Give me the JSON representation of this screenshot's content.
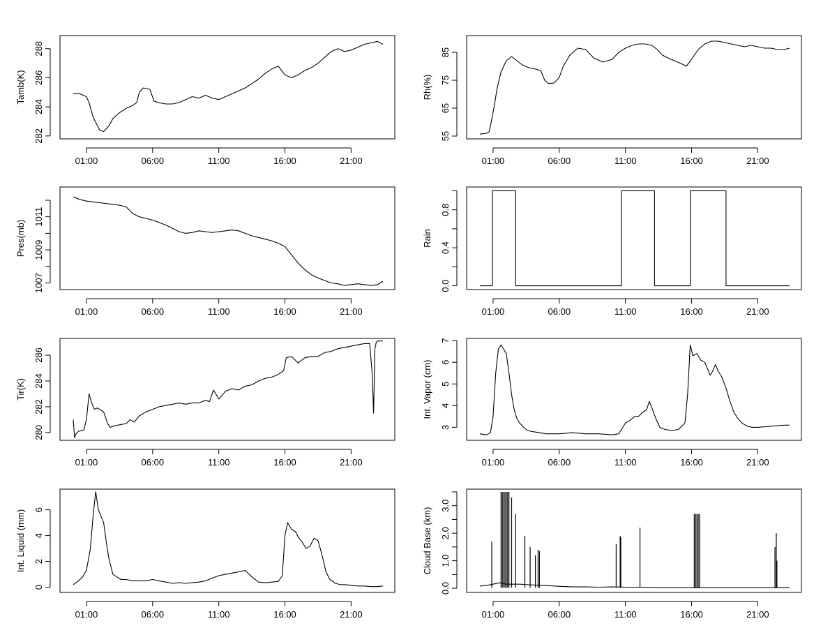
{
  "x_ticks": [
    "01:00",
    "06:00",
    "11:00",
    "16:00",
    "21:00"
  ],
  "x_tick_values": [
    1,
    6,
    11,
    16,
    21
  ],
  "line_color": "#000000",
  "chart_data": [
    {
      "type": "line",
      "ylabel": "Tamb(K)",
      "ylim": [
        281.8,
        288.9
      ],
      "yticks": [
        282,
        284,
        286,
        288
      ],
      "yticklabels": [
        "282",
        "284",
        "286",
        "288"
      ],
      "x": [
        0,
        0.5,
        1,
        1.2,
        1.5,
        2,
        2.3,
        2.7,
        3,
        3.5,
        4,
        4.5,
        4.8,
        5,
        5.3,
        5.8,
        6.1,
        6.4,
        7,
        7.5,
        8,
        8.5,
        9,
        9.5,
        10,
        10.5,
        11,
        11.5,
        12,
        12.5,
        13,
        13.5,
        14,
        14.5,
        15,
        15.5,
        16,
        16.5,
        17,
        17.5,
        18,
        18.5,
        19,
        19.5,
        20,
        20.5,
        21,
        21.5,
        22,
        22.5,
        23,
        23.4
      ],
      "y": [
        284.9,
        284.9,
        284.7,
        284.3,
        283.3,
        282.4,
        282.3,
        282.7,
        283.2,
        283.6,
        283.9,
        284.1,
        284.3,
        285.0,
        285.3,
        285.2,
        284.4,
        284.3,
        284.2,
        284.2,
        284.3,
        284.5,
        284.7,
        284.6,
        284.8,
        284.6,
        284.5,
        284.7,
        284.9,
        285.1,
        285.3,
        285.6,
        285.9,
        286.3,
        286.6,
        286.8,
        286.2,
        286.0,
        286.2,
        286.5,
        286.7,
        287.0,
        287.4,
        287.8,
        288.0,
        287.8,
        287.9,
        288.1,
        288.3,
        288.4,
        288.5,
        288.3
      ]
    },
    {
      "type": "line",
      "ylabel": "Rh(%)",
      "ylim": [
        54,
        91
      ],
      "yticks": [
        55,
        65,
        75,
        85
      ],
      "yticklabels": [
        "55",
        "65",
        "75",
        "85"
      ],
      "x": [
        0,
        0.5,
        0.7,
        0.9,
        1.1,
        1.3,
        1.6,
        2,
        2.4,
        2.8,
        3.2,
        3.7,
        4.2,
        4.6,
        4.9,
        5.2,
        5.6,
        6,
        6.3,
        6.8,
        7.4,
        8,
        8.6,
        9.3,
        10,
        10.5,
        11,
        11.5,
        12,
        12.5,
        13,
        13.4,
        13.8,
        14.2,
        14.7,
        15.2,
        15.6,
        16,
        16.5,
        17,
        17.5,
        18,
        18.5,
        19,
        19.5,
        20,
        20.5,
        21,
        21.5,
        22,
        22.5,
        23,
        23.4
      ],
      "y": [
        55.7,
        56,
        56.5,
        61,
        66,
        72,
        78,
        82,
        83.5,
        82,
        80.5,
        79.5,
        79,
        78.5,
        75,
        73.8,
        74,
        76,
        80,
        84,
        86.5,
        86,
        83,
        81.5,
        82.5,
        85,
        86.5,
        87.5,
        88,
        88,
        87.5,
        86,
        84,
        83,
        82,
        81,
        80,
        82.5,
        86,
        88,
        89,
        89,
        88.5,
        88,
        87.5,
        87,
        87.5,
        87,
        86.5,
        86.5,
        86,
        86,
        86.5
      ]
    },
    {
      "type": "line",
      "ylabel": "Pres(mb)",
      "ylim": [
        1006.6,
        1012.8
      ],
      "yticks": [
        1007,
        1009,
        1011
      ],
      "yticklabels": [
        "1007",
        "1009",
        "1011"
      ],
      "minor_yticks": [
        1008,
        1010,
        1012
      ],
      "x": [
        0,
        0.5,
        1,
        1.5,
        2,
        2.5,
        3,
        3.5,
        4,
        4.5,
        5,
        5.5,
        6,
        6.5,
        7,
        7.5,
        8,
        8.5,
        9,
        9.5,
        10,
        10.5,
        11,
        11.5,
        12,
        12.5,
        13,
        13.5,
        14,
        14.5,
        15,
        15.5,
        16,
        16.5,
        17,
        17.5,
        18,
        18.5,
        19,
        19.5,
        20,
        20.5,
        21,
        21.5,
        22,
        22.5,
        23,
        23.4
      ],
      "y": [
        1012.2,
        1012.05,
        1011.95,
        1011.9,
        1011.85,
        1011.8,
        1011.75,
        1011.7,
        1011.6,
        1011.2,
        1011.0,
        1010.9,
        1010.8,
        1010.65,
        1010.5,
        1010.3,
        1010.1,
        1010.0,
        1010.05,
        1010.15,
        1010.1,
        1010.05,
        1010.1,
        1010.15,
        1010.2,
        1010.15,
        1010.0,
        1009.85,
        1009.75,
        1009.65,
        1009.55,
        1009.4,
        1009.2,
        1008.7,
        1008.2,
        1007.8,
        1007.5,
        1007.3,
        1007.15,
        1007.0,
        1006.95,
        1006.85,
        1006.9,
        1006.95,
        1006.9,
        1006.85,
        1006.9,
        1007.1
      ]
    },
    {
      "type": "line",
      "step": true,
      "ylabel": "Rain",
      "ylim": [
        -0.04,
        1.04
      ],
      "yticks": [
        0,
        0.4,
        0.8
      ],
      "yticklabels": [
        "0.0",
        "0.4",
        "0.8"
      ],
      "minor_yticks": [
        0.2,
        0.6,
        1.0
      ],
      "x": [
        0,
        0.95,
        0.95,
        2.7,
        2.7,
        10.7,
        10.7,
        13.2,
        13.2,
        15.9,
        15.9,
        18.6,
        18.6,
        23.4
      ],
      "y": [
        0,
        0,
        1,
        1,
        0,
        0,
        1,
        1,
        0,
        0,
        1,
        1,
        0,
        0
      ]
    },
    {
      "type": "line",
      "ylabel": "Tir(K)",
      "ylim": [
        279.4,
        287.3
      ],
      "yticks": [
        280,
        282,
        284,
        286
      ],
      "yticklabels": [
        "280",
        "282",
        "284",
        "286"
      ],
      "x": [
        0,
        0.1,
        0.2,
        0.4,
        0.8,
        1.0,
        1.1,
        1.2,
        1.4,
        1.6,
        1.8,
        2.0,
        2.3,
        2.6,
        2.8,
        3.0,
        3.5,
        4.0,
        4.3,
        4.6,
        5.0,
        5.5,
        6.0,
        6.5,
        7.0,
        7.5,
        8.0,
        8.5,
        9.0,
        9.5,
        10.0,
        10.3,
        10.6,
        11.0,
        11.5,
        12.0,
        12.5,
        13.0,
        13.5,
        14.0,
        14.5,
        15.0,
        15.5,
        15.9,
        16.1,
        16.5,
        17.0,
        17.5,
        18.0,
        18.5,
        19.0,
        19.5,
        20.0,
        20.5,
        21.0,
        21.5,
        22.0,
        22.4,
        22.6,
        22.7,
        22.8,
        22.9,
        23.0,
        23.2,
        23.4
      ],
      "y": [
        281.0,
        279.6,
        279.9,
        280.1,
        280.2,
        281.0,
        282.0,
        283.0,
        282.3,
        281.8,
        281.9,
        281.8,
        281.6,
        280.7,
        280.4,
        280.5,
        280.6,
        280.7,
        281.0,
        280.8,
        281.3,
        281.6,
        281.8,
        282.0,
        282.1,
        282.2,
        282.3,
        282.2,
        282.3,
        282.3,
        282.5,
        282.4,
        283.3,
        282.6,
        283.2,
        283.4,
        283.3,
        283.6,
        283.7,
        284.0,
        284.2,
        284.3,
        284.5,
        284.8,
        285.8,
        285.9,
        285.4,
        285.8,
        285.9,
        285.9,
        286.2,
        286.3,
        286.5,
        286.6,
        286.7,
        286.8,
        286.9,
        286.9,
        284.5,
        281.5,
        286.5,
        287.0,
        287.1,
        287.1,
        287.1
      ]
    },
    {
      "type": "line",
      "ylabel": "Int. Vapor (cm)",
      "ylim": [
        2.4,
        7.1
      ],
      "yticks": [
        3,
        4,
        5,
        6,
        7
      ],
      "yticklabels": [
        "3",
        "4",
        "5",
        "6",
        "7"
      ],
      "x": [
        0,
        0.5,
        0.8,
        1.0,
        1.2,
        1.4,
        1.6,
        1.8,
        2.0,
        2.2,
        2.4,
        2.6,
        2.8,
        3.0,
        3.3,
        3.6,
        4.0,
        4.5,
        5.0,
        6.0,
        7.0,
        8.0,
        9.0,
        10.0,
        10.5,
        10.8,
        11.0,
        11.3,
        11.7,
        12.0,
        12.3,
        12.6,
        12.8,
        13.0,
        13.3,
        13.6,
        14.0,
        14.5,
        15.0,
        15.5,
        15.7,
        15.9,
        16.1,
        16.4,
        16.7,
        17.0,
        17.2,
        17.4,
        17.6,
        17.8,
        18.0,
        18.3,
        18.6,
        18.9,
        19.2,
        19.5,
        19.8,
        20.2,
        20.6,
        21.0,
        22.0,
        23.0,
        23.4
      ],
      "y": [
        2.7,
        2.65,
        2.75,
        3.5,
        5.5,
        6.6,
        6.8,
        6.6,
        6.4,
        5.5,
        4.5,
        3.8,
        3.4,
        3.2,
        3.0,
        2.85,
        2.8,
        2.75,
        2.7,
        2.7,
        2.75,
        2.7,
        2.7,
        2.65,
        2.7,
        3.0,
        3.2,
        3.3,
        3.5,
        3.5,
        3.7,
        3.8,
        4.2,
        3.9,
        3.4,
        3.0,
        2.9,
        2.85,
        2.9,
        3.2,
        4.5,
        6.8,
        6.3,
        6.4,
        6.1,
        6.0,
        5.7,
        5.4,
        5.6,
        5.9,
        5.6,
        5.3,
        4.8,
        4.2,
        3.7,
        3.4,
        3.2,
        3.05,
        3.0,
        3.0,
        3.05,
        3.1,
        3.1
      ]
    },
    {
      "type": "line",
      "ylabel": "Int. Liquid (mm)",
      "ylim": [
        -0.4,
        7.6
      ],
      "yticks": [
        0,
        2,
        4,
        6
      ],
      "yticklabels": [
        "0",
        "2",
        "4",
        "6"
      ],
      "x": [
        0,
        0.4,
        0.7,
        1.0,
        1.3,
        1.5,
        1.7,
        1.9,
        2.1,
        2.3,
        2.5,
        2.7,
        3.0,
        3.3,
        3.6,
        4.0,
        4.5,
        5.0,
        5.5,
        6.0,
        6.5,
        7.0,
        7.5,
        8.0,
        8.5,
        9.0,
        9.5,
        10.0,
        10.5,
        11.0,
        11.5,
        12.0,
        12.5,
        13.0,
        13.5,
        14.0,
        14.5,
        15.0,
        15.5,
        15.8,
        16.0,
        16.2,
        16.5,
        16.8,
        17.0,
        17.3,
        17.6,
        17.9,
        18.2,
        18.5,
        18.8,
        19.1,
        19.4,
        19.8,
        20.2,
        20.6,
        21.0,
        21.5,
        22.0,
        22.5,
        23.0,
        23.4
      ],
      "y": [
        0.2,
        0.5,
        0.8,
        1.3,
        3.0,
        5.5,
        7.4,
        6.0,
        5.5,
        5.0,
        3.5,
        2.2,
        1.0,
        0.8,
        0.6,
        0.6,
        0.5,
        0.5,
        0.5,
        0.6,
        0.5,
        0.4,
        0.3,
        0.35,
        0.3,
        0.35,
        0.4,
        0.5,
        0.7,
        0.9,
        1.0,
        1.1,
        1.2,
        1.3,
        0.8,
        0.4,
        0.35,
        0.4,
        0.45,
        0.9,
        4.0,
        5.0,
        4.5,
        4.3,
        3.9,
        3.5,
        3.0,
        3.2,
        3.8,
        3.6,
        2.5,
        1.2,
        0.6,
        0.3,
        0.2,
        0.2,
        0.15,
        0.1,
        0.1,
        0.05,
        0.05,
        0.1
      ]
    },
    {
      "type": "line",
      "ylabel": "Cloud Base (km)",
      "ylim": [
        -0.15,
        3.6
      ],
      "yticks": [
        0,
        1,
        2,
        3
      ],
      "yticklabels": [
        "0.0",
        "1.0",
        "2.0",
        "3.0"
      ],
      "minor_yticks": [
        0.5,
        1.5,
        2.5,
        3.5
      ],
      "baseline": [
        [
          0,
          0.08
        ],
        [
          0.5,
          0.1
        ],
        [
          1.0,
          0.15
        ],
        [
          1.5,
          0.2
        ],
        [
          2.0,
          0.15
        ],
        [
          3.0,
          0.15
        ],
        [
          4.0,
          0.12
        ],
        [
          5.0,
          0.1
        ],
        [
          6.0,
          0.07
        ],
        [
          7.0,
          0.05
        ],
        [
          8.0,
          0.05
        ],
        [
          9.0,
          0.04
        ],
        [
          10.0,
          0.05
        ],
        [
          11.0,
          0.04
        ],
        [
          12.0,
          0.04
        ],
        [
          13.0,
          0.03
        ],
        [
          14.0,
          0.02
        ],
        [
          15.0,
          0.02
        ],
        [
          16.0,
          0.02
        ],
        [
          17.0,
          0.02
        ],
        [
          18.0,
          0.02
        ],
        [
          19.0,
          0.02
        ],
        [
          20.0,
          0.02
        ],
        [
          21.0,
          0.02
        ],
        [
          22.0,
          0.02
        ],
        [
          23.0,
          0.02
        ],
        [
          23.4,
          0.03
        ]
      ],
      "spikes": [
        [
          0.9,
          1.7
        ],
        [
          1.6,
          3.5
        ],
        [
          1.7,
          3.5
        ],
        [
          1.8,
          3.5
        ],
        [
          1.9,
          3.5
        ],
        [
          2.0,
          3.5
        ],
        [
          2.1,
          3.5
        ],
        [
          2.2,
          3.5
        ],
        [
          2.4,
          3.3
        ],
        [
          2.7,
          2.7
        ],
        [
          3.4,
          1.9
        ],
        [
          3.8,
          1.5
        ],
        [
          4.2,
          1.2
        ],
        [
          4.4,
          1.4
        ],
        [
          4.5,
          1.35
        ],
        [
          10.3,
          1.6
        ],
        [
          10.6,
          1.9
        ],
        [
          10.65,
          1.85
        ],
        [
          12.1,
          2.2
        ],
        [
          16.2,
          2.7
        ],
        [
          16.3,
          2.7
        ],
        [
          16.4,
          2.7
        ],
        [
          16.5,
          2.7
        ],
        [
          16.6,
          2.7
        ],
        [
          22.3,
          1.5
        ],
        [
          22.4,
          2.0
        ],
        [
          22.45,
          1.0
        ]
      ]
    }
  ]
}
